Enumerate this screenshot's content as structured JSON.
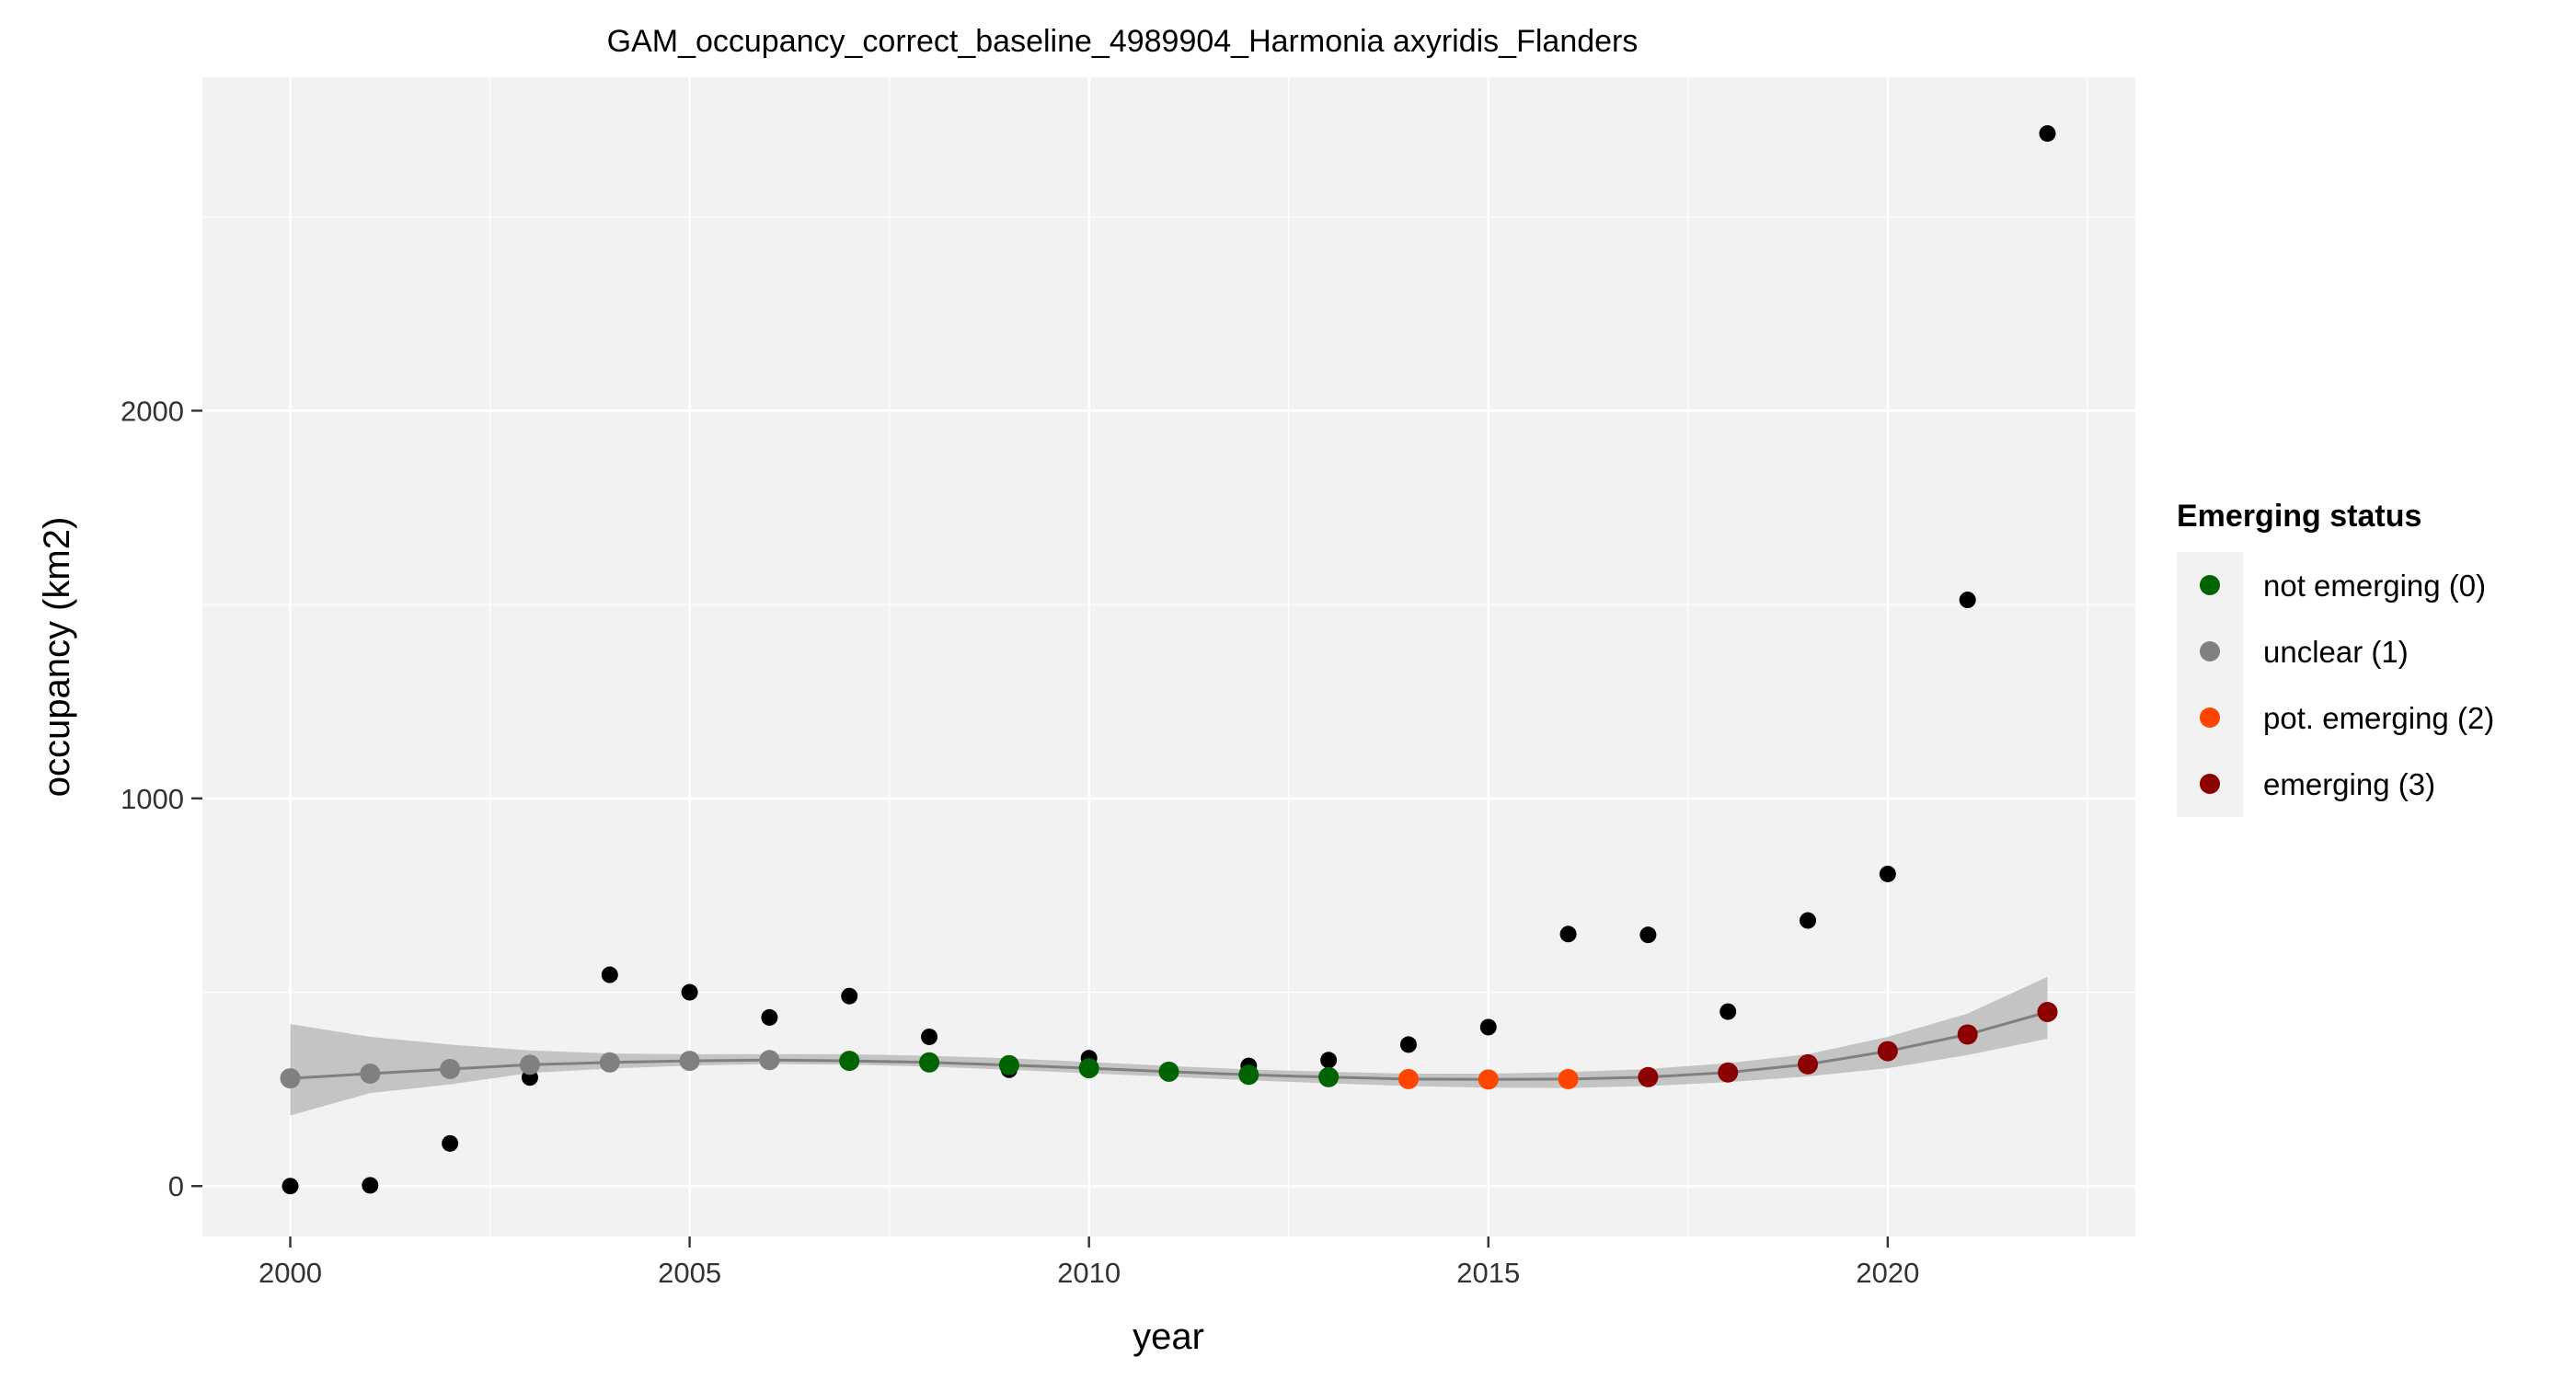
{
  "chart_data": {
    "type": "scatter",
    "title": "GAM_occupancy_correct_baseline_4989904_Harmonia axyridis_Flanders",
    "xlabel": "year",
    "ylabel": "occupancy (km2)",
    "xlim": [
      1998.9,
      2023.1
    ],
    "ylim": [
      -130,
      2860
    ],
    "x_ticks": [
      2000,
      2005,
      2010,
      2015,
      2020
    ],
    "x_tick_labels": [
      "2000",
      "2005",
      "2010",
      "2015",
      "2020"
    ],
    "y_ticks": [
      0,
      1000,
      2000
    ],
    "y_tick_labels": [
      "0",
      "1000",
      "2000"
    ],
    "grid": true,
    "legend_position": "right",
    "observed": {
      "x": [
        2000,
        2001,
        2002,
        2003,
        2004,
        2005,
        2006,
        2007,
        2008,
        2009,
        2010,
        2011,
        2012,
        2013,
        2014,
        2015,
        2016,
        2017,
        2018,
        2019,
        2020,
        2021,
        2022
      ],
      "y": [
        0,
        2,
        110,
        280,
        545,
        500,
        435,
        490,
        385,
        300,
        330,
        295,
        310,
        325,
        365,
        410,
        650,
        648,
        450,
        685,
        805,
        1512,
        2715
      ],
      "color": "#000000"
    },
    "fit": {
      "x": [
        2000,
        2001,
        2002,
        2003,
        2004,
        2005,
        2006,
        2007,
        2008,
        2009,
        2010,
        2011,
        2012,
        2013,
        2014,
        2015,
        2016,
        2017,
        2018,
        2019,
        2020,
        2021,
        2022
      ],
      "y": [
        278,
        290,
        302,
        313,
        319,
        323,
        325,
        323,
        319,
        312,
        304,
        295,
        287,
        281,
        276,
        275,
        276,
        281,
        293,
        314,
        348,
        391,
        449
      ],
      "lower": [
        182,
        240,
        262,
        292,
        303,
        311,
        315,
        313,
        308,
        300,
        291,
        282,
        273,
        265,
        258,
        254,
        253,
        258,
        268,
        283,
        304,
        338,
        380
      ],
      "upper": [
        418,
        385,
        365,
        350,
        342,
        340,
        340,
        340,
        336,
        330,
        320,
        310,
        301,
        295,
        290,
        290,
        294,
        302,
        317,
        340,
        385,
        445,
        540
      ],
      "status": [
        1,
        1,
        1,
        1,
        1,
        1,
        1,
        0,
        0,
        0,
        0,
        0,
        0,
        0,
        2,
        2,
        2,
        3,
        3,
        3,
        3,
        3,
        3
      ],
      "line_color": "#808080",
      "ribbon_color": "#c4c4c4"
    },
    "legend": {
      "title": "Emerging status",
      "entries": [
        {
          "label": "not emerging (0)",
          "color": "#006400"
        },
        {
          "label": "unclear (1)",
          "color": "#808080"
        },
        {
          "label": "pot. emerging (2)",
          "color": "#ff4500"
        },
        {
          "label": "emerging (3)",
          "color": "#8b0000"
        }
      ]
    },
    "panel_background": "#f2f2f2",
    "grid_color": "#ffffff"
  }
}
